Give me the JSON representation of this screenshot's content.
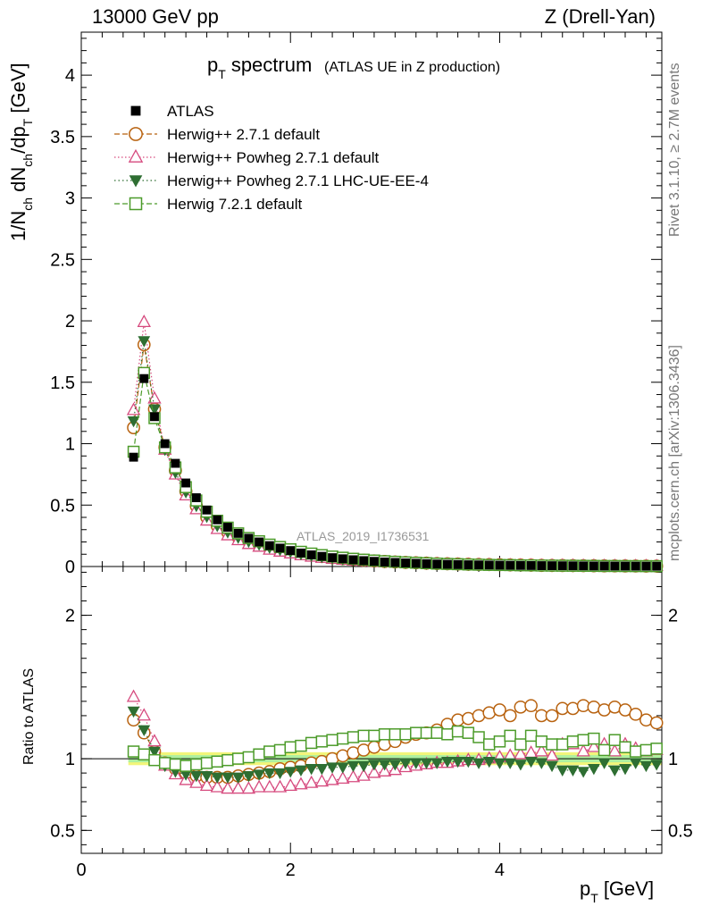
{
  "header": {
    "left": "13000 GeV pp",
    "right": "Z (Drell-Yan)"
  },
  "side_labels": {
    "rivet": "Rivet 3.1.10, ≥ 2.7M events",
    "mcplots": "mcplots.cern.ch [arXiv:1306.3436]"
  },
  "chart_data": {
    "type": "scatter",
    "title_main": "p",
    "title_sub": "T",
    "title_word": "spectrum",
    "subtitle": "(ATLAS UE in Z production)",
    "watermark": "ATLAS_2019_I1736531",
    "xlabel_main": "p",
    "xlabel_sub": "T",
    "xlabel_unit": "[GeV]",
    "ylabel_parts": [
      "1/N",
      "ch",
      " dN",
      "ch",
      "/dp",
      "T",
      " [GeV]"
    ],
    "ratio_ylabel": "Ratio to ATLAS",
    "xlim": [
      0,
      5.55
    ],
    "ylim": [
      0,
      4.35
    ],
    "ratio_ylim": [
      0.34,
      2.34
    ],
    "xticks": [
      "0",
      "2",
      "4"
    ],
    "yticks": [
      "0",
      "0.5",
      "1",
      "1.5",
      "2",
      "2.5",
      "3",
      "3.5",
      "4"
    ],
    "ratio_yticks": [
      "0.5",
      "1",
      "2"
    ],
    "x": [
      0.5,
      0.6,
      0.7,
      0.8,
      0.9,
      1.0,
      1.1,
      1.2,
      1.3,
      1.4,
      1.5,
      1.6,
      1.7,
      1.8,
      1.9,
      2.0,
      2.1,
      2.2,
      2.3,
      2.4,
      2.5,
      2.6,
      2.7,
      2.8,
      2.9,
      3.0,
      3.1,
      3.2,
      3.3,
      3.4,
      3.5,
      3.6,
      3.7,
      3.8,
      3.9,
      4.0,
      4.1,
      4.2,
      4.3,
      4.4,
      4.5,
      4.6,
      4.7,
      4.8,
      4.9,
      5.0,
      5.1,
      5.2,
      5.3,
      5.4,
      5.5
    ],
    "atlas": [
      0.89,
      1.53,
      1.22,
      1.0,
      0.84,
      0.68,
      0.56,
      0.46,
      0.38,
      0.32,
      0.27,
      0.23,
      0.2,
      0.17,
      0.15,
      0.13,
      0.11,
      0.095,
      0.083,
      0.072,
      0.063,
      0.055,
      0.048,
      0.042,
      0.037,
      0.033,
      0.029,
      0.026,
      0.023,
      0.02,
      0.018,
      0.016,
      0.014,
      0.013,
      0.012,
      0.011,
      0.01,
      0.009,
      0.008,
      0.007,
      0.0065,
      0.006,
      0.0055,
      0.005,
      0.0045,
      0.004,
      0.0037,
      0.0034,
      0.0031,
      0.0028,
      0.0025
    ],
    "series": [
      {
        "name": "Herwig++ 2.7.1 default",
        "color": "#b8620f",
        "marker": "circle-open",
        "dash": "6,3",
        "ratio": [
          1.27,
          1.18,
          1.05,
          0.97,
          0.93,
          0.9,
          0.88,
          0.87,
          0.87,
          0.87,
          0.88,
          0.89,
          0.9,
          0.91,
          0.93,
          0.94,
          0.95,
          0.97,
          0.98,
          1.0,
          1.02,
          1.04,
          1.06,
          1.08,
          1.1,
          1.12,
          1.15,
          1.17,
          1.18,
          1.2,
          1.24,
          1.27,
          1.28,
          1.3,
          1.32,
          1.34,
          1.3,
          1.36,
          1.37,
          1.3,
          1.3,
          1.35,
          1.35,
          1.37,
          1.36,
          1.34,
          1.36,
          1.34,
          1.31,
          1.27,
          1.25
        ]
      },
      {
        "name": "Herwig++ Powheg 2.7.1 default",
        "color": "#d64a7e",
        "marker": "triangle-open",
        "dash": "1.5,2.5",
        "ratio": [
          1.43,
          1.3,
          1.12,
          0.95,
          0.89,
          0.85,
          0.83,
          0.81,
          0.8,
          0.79,
          0.79,
          0.79,
          0.8,
          0.8,
          0.8,
          0.81,
          0.82,
          0.83,
          0.84,
          0.85,
          0.86,
          0.87,
          0.88,
          0.9,
          0.91,
          0.92,
          0.94,
          0.95,
          0.96,
          0.97,
          0.97,
          0.98,
          0.99,
          0.99,
          1.0,
          1.01,
          1.02,
          1.03,
          1.04,
          1.05,
          1.02,
          1.1,
          1.1,
          1.05,
          1.08,
          1.1,
          1.05,
          1.1,
          1.07,
          1.05,
          1.06
        ]
      },
      {
        "name": "Herwig++ Powheg 2.7.1 LHC-UE-EE-4",
        "color": "#2e6e32",
        "marker": "triangle-down",
        "dash": "1.5,3",
        "ratio": [
          1.33,
          1.2,
          1.05,
          0.95,
          0.91,
          0.89,
          0.88,
          0.88,
          0.87,
          0.87,
          0.87,
          0.88,
          0.89,
          0.9,
          0.9,
          0.91,
          0.92,
          0.93,
          0.93,
          0.94,
          0.94,
          0.95,
          0.95,
          0.96,
          0.96,
          0.96,
          0.97,
          0.97,
          0.97,
          0.97,
          0.98,
          0.98,
          0.98,
          0.97,
          0.98,
          0.97,
          0.97,
          0.96,
          0.98,
          0.97,
          0.95,
          0.92,
          0.92,
          0.91,
          0.93,
          0.97,
          0.92,
          0.93,
          0.97,
          0.95,
          0.96
        ]
      },
      {
        "name": "Herwig 7.2.1 default",
        "color": "#4c9b2a",
        "marker": "square-open",
        "dash": "6,3",
        "ratio": [
          1.05,
          1.03,
          0.99,
          0.97,
          0.96,
          0.95,
          0.96,
          0.97,
          0.98,
          0.99,
          1.0,
          1.01,
          1.03,
          1.05,
          1.06,
          1.08,
          1.09,
          1.11,
          1.12,
          1.13,
          1.14,
          1.15,
          1.16,
          1.16,
          1.17,
          1.17,
          1.17,
          1.18,
          1.18,
          1.18,
          1.17,
          1.19,
          1.18,
          1.15,
          1.1,
          1.12,
          1.16,
          1.1,
          1.16,
          1.12,
          1.1,
          1.1,
          1.12,
          1.13,
          1.14,
          1.06,
          1.13,
          1.08,
          1.05,
          1.06,
          1.07
        ]
      }
    ],
    "legend_data_label": "ATLAS",
    "legend_position": "top-left",
    "band": {
      "inner_color": "#aef0a0",
      "outer_color": "#f2f57a"
    }
  }
}
